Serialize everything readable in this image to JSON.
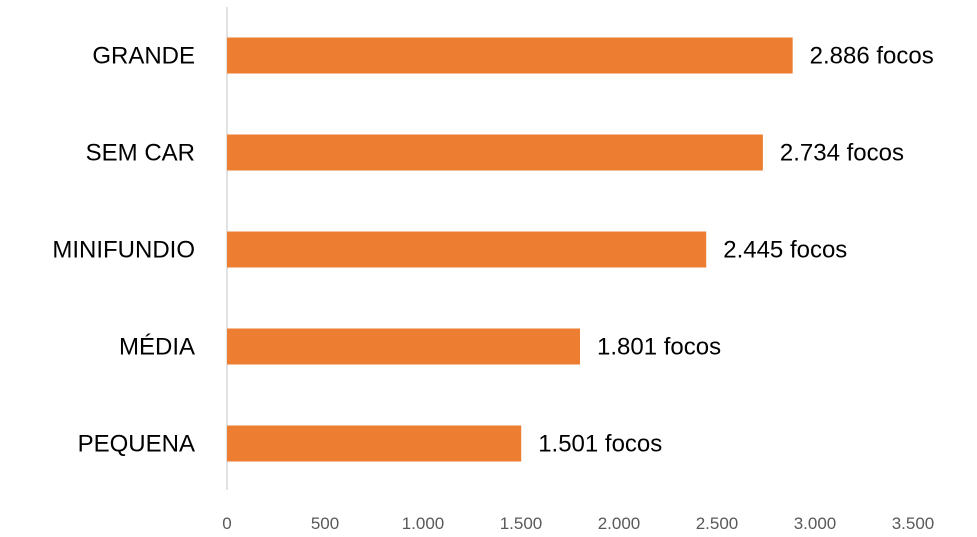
{
  "chart_data": {
    "type": "bar",
    "orientation": "horizontal",
    "categories": [
      "GRANDE",
      "SEM CAR",
      "MINIFUNDIO",
      "MÉDIA",
      "PEQUENA"
    ],
    "values": [
      2886,
      2734,
      2445,
      1801,
      1501
    ],
    "data_labels": [
      "2.886 focos",
      "2.734 focos",
      "2.445 focos",
      "1.801 focos",
      "1.501 focos"
    ],
    "x_ticks": [
      "0",
      "500",
      "1.000",
      "1.500",
      "2.000",
      "2.500",
      "3.000",
      "3.500"
    ],
    "xlim": [
      0,
      3500
    ],
    "title": "",
    "xlabel": "",
    "ylabel": "",
    "grid": false,
    "legend": "none",
    "bar_color": "#ED7D31",
    "axis_color": "#D9D9D9"
  }
}
